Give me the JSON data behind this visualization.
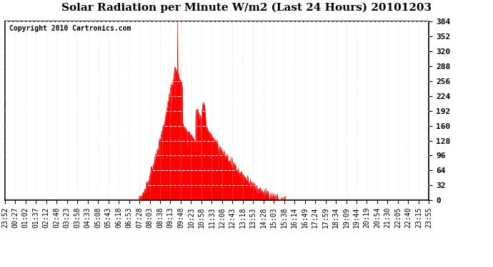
{
  "title": "Solar Radiation per Minute W/m2 (Last 24 Hours) 20101203",
  "copyright": "Copyright 2010 Cartronics.com",
  "fill_color": "#FF0000",
  "line_color": "#FF0000",
  "background_color": "#FFFFFF",
  "grid_color": "#BBBBBB",
  "dashed_line_color": "#FF0000",
  "ylim": [
    0.0,
    384.0
  ],
  "yticks": [
    0.0,
    32.0,
    64.0,
    96.0,
    128.0,
    160.0,
    192.0,
    224.0,
    256.0,
    288.0,
    320.0,
    352.0,
    384.0
  ],
  "x_labels": [
    "23:52",
    "00:27",
    "01:02",
    "01:37",
    "02:12",
    "02:48",
    "03:23",
    "03:58",
    "04:33",
    "05:08",
    "05:43",
    "06:18",
    "06:53",
    "07:28",
    "08:03",
    "08:38",
    "09:13",
    "09:48",
    "10:23",
    "10:58",
    "11:33",
    "12:08",
    "12:43",
    "13:18",
    "13:53",
    "14:28",
    "15:03",
    "15:38",
    "16:14",
    "16:49",
    "17:24",
    "17:59",
    "18:34",
    "19:09",
    "19:44",
    "20:19",
    "20:54",
    "21:30",
    "22:05",
    "22:40",
    "23:15",
    "23:55"
  ],
  "num_points": 1440,
  "solar_max": 384.0,
  "title_fontsize": 11,
  "copyright_fontsize": 7,
  "ytick_fontsize": 8,
  "xtick_fontsize": 7
}
